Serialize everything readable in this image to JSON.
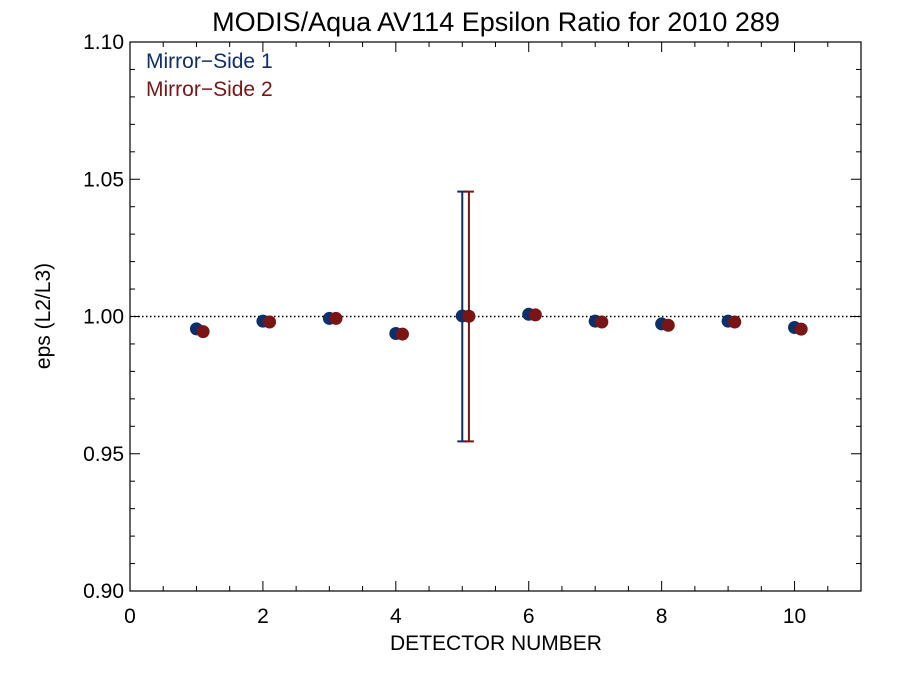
{
  "chart_data": {
    "type": "scatter",
    "title": "MODIS/Aqua AV114 Epsilon Ratio for 2010 289",
    "xlabel": "DETECTOR NUMBER",
    "ylabel": "eps (L2/L3)",
    "xlim": [
      0,
      11
    ],
    "ylim": [
      0.9,
      1.1
    ],
    "x_ticks": [
      0,
      2,
      4,
      6,
      8,
      10
    ],
    "x_tick_labels": [
      "0",
      "2",
      "4",
      "6",
      "8",
      "10"
    ],
    "y_ticks": [
      0.9,
      0.95,
      1.0,
      1.05,
      1.1
    ],
    "y_tick_labels": [
      "0.90",
      "0.95",
      "1.00",
      "1.05",
      "1.10"
    ],
    "reference_line": {
      "y": 1.0,
      "style": "dotted"
    },
    "legend_position": "top-left",
    "series": [
      {
        "name": "Mirror−Side 1",
        "color": "#0d2f6b",
        "x": [
          1,
          2,
          3,
          4,
          5,
          6,
          7,
          8,
          9,
          10
        ],
        "y": [
          0.9955,
          0.9983,
          0.9993,
          0.9938,
          1.0002,
          1.0008,
          0.9983,
          0.9973,
          0.9983,
          0.996
        ],
        "error_bars": [
          {
            "x": 5,
            "low": 0.9545,
            "high": 1.0455
          }
        ]
      },
      {
        "name": "Mirror−Side 2",
        "color": "#7a1515",
        "x": [
          1.1,
          2.1,
          3.1,
          4.1,
          5.1,
          6.1,
          7.1,
          8.1,
          9.1,
          10.1
        ],
        "y": [
          0.9945,
          0.998,
          0.9993,
          0.9936,
          1.0001,
          1.0006,
          0.998,
          0.9968,
          0.998,
          0.9954
        ],
        "error_bars": [
          {
            "x": 5.1,
            "low": 0.9545,
            "high": 1.0455
          }
        ]
      }
    ]
  }
}
